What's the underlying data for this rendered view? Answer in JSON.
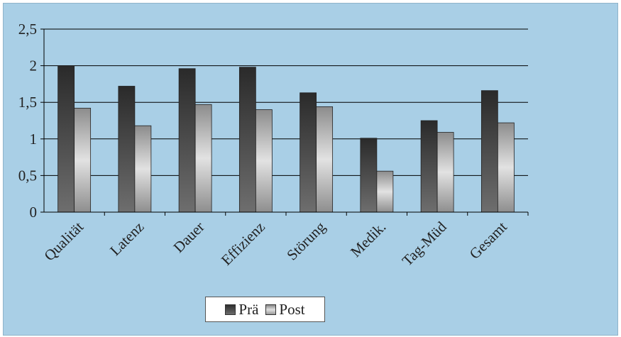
{
  "chart_data": {
    "type": "bar",
    "categories": [
      "Qualität",
      "Latenz",
      "Dauer",
      "Effizienz",
      "Störung",
      "Medik.",
      "Tag-Müd",
      "Gesamt"
    ],
    "series": [
      {
        "name": "Prä",
        "values": [
          2.0,
          1.72,
          1.96,
          1.98,
          1.63,
          1.01,
          1.25,
          1.66
        ]
      },
      {
        "name": "Post",
        "values": [
          1.42,
          1.18,
          1.47,
          1.4,
          1.44,
          0.56,
          1.09,
          1.22
        ]
      }
    ],
    "title": "",
    "xlabel": "",
    "ylabel": "",
    "ylim": [
      0,
      2.5
    ],
    "yticks": [
      "0",
      "0,5",
      "1",
      "1,5",
      "2",
      "2,5"
    ],
    "grid": true,
    "legend_position": "bottom",
    "colors": {
      "pre_top": "#2f2f2f",
      "pre_bottom": "#6a6a6a",
      "post_light": "#e0e0e0",
      "post_dark": "#8a8a8a",
      "background": "#a9cfe6"
    }
  }
}
